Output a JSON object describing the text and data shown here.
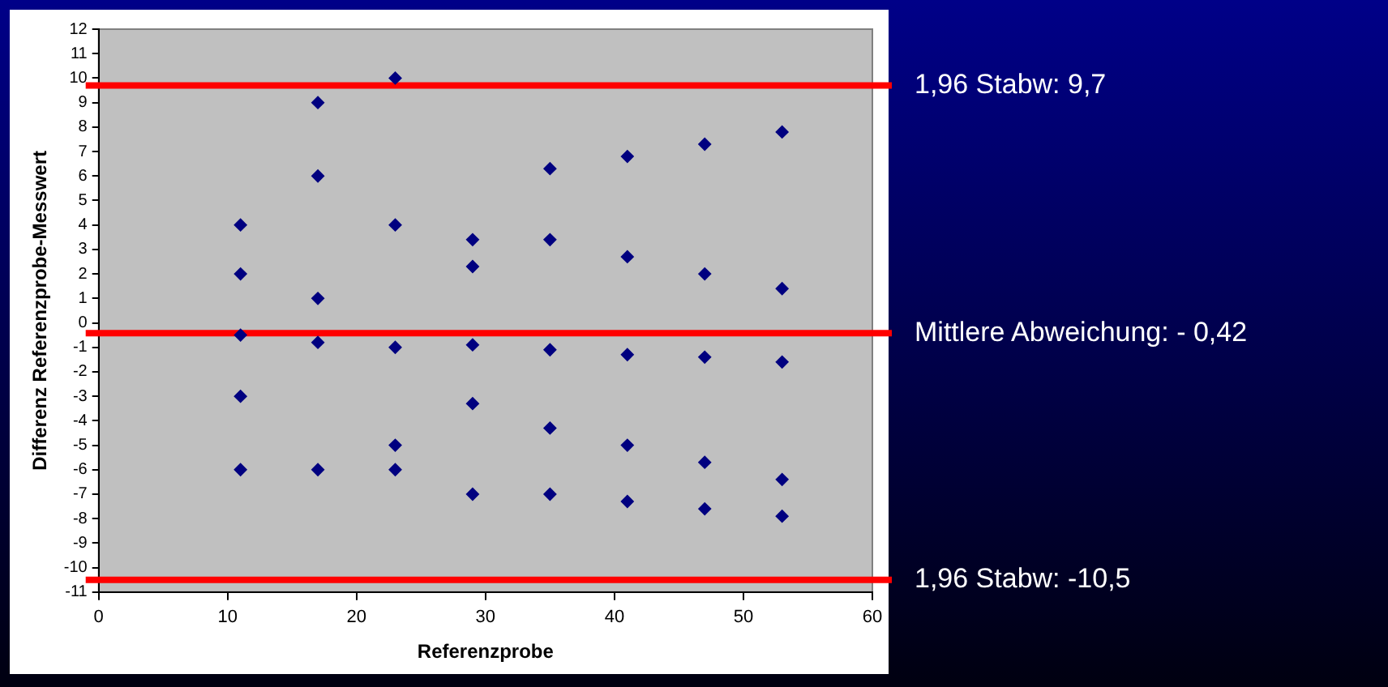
{
  "chart_data": {
    "type": "scatter",
    "xlabel": "Referenzprobe",
    "ylabel": "Differenz Referenzprobe-Messwert",
    "x": [
      11,
      11,
      11,
      11,
      11,
      17,
      17,
      17,
      17,
      17,
      23,
      23,
      23,
      23,
      23,
      29,
      29,
      29,
      29,
      29,
      35,
      35,
      35,
      35,
      35,
      41,
      41,
      41,
      41,
      41,
      47,
      47,
      47,
      47,
      47,
      53,
      53,
      53,
      53,
      53
    ],
    "values": [
      4,
      2,
      -0.5,
      -3,
      -6,
      9,
      6,
      1,
      -0.8,
      -6,
      10,
      4,
      -1,
      -5,
      -6,
      3.4,
      2.3,
      -0.9,
      -3.3,
      -7,
      6.3,
      3.4,
      -1.1,
      -4.3,
      -7,
      6.8,
      2.7,
      -1.3,
      -5,
      -7.3,
      7.3,
      2.0,
      -1.4,
      -5.7,
      -7.6,
      7.8,
      1.4,
      -1.6,
      -6.4,
      -7.9
    ],
    "color": "#000080",
    "marker": "diamond",
    "xlim": [
      0,
      60
    ],
    "xticks": [
      0,
      10,
      20,
      30,
      40,
      50,
      60
    ],
    "ylim": [
      -11,
      12
    ],
    "yticks": [
      -11,
      -10,
      -9,
      -8,
      -7,
      -6,
      -5,
      -4,
      -3,
      -2,
      -1,
      0,
      1,
      2,
      3,
      4,
      5,
      6,
      7,
      8,
      9,
      10,
      11,
      12
    ],
    "grid": false,
    "legend": false,
    "ref_lines": [
      {
        "axis": "y",
        "value": 9.7,
        "label": "1,96 Stabw: 9,7",
        "color": "#ff0000"
      },
      {
        "axis": "y",
        "value": -0.42,
        "label": "Mittlere Abweichung: - 0,42",
        "color": "#ff0000"
      },
      {
        "axis": "y",
        "value": -10.5,
        "label": "1,96 Stabw: -10,5",
        "color": "#ff0000"
      }
    ]
  }
}
